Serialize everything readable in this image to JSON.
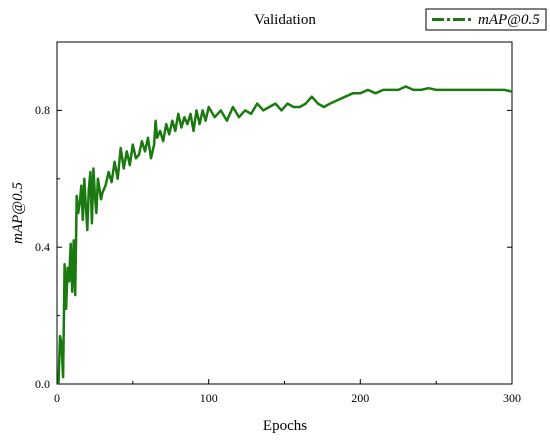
{
  "chart_data": {
    "type": "line",
    "title": "Validation",
    "xlabel": "Epochs",
    "ylabel": "mAP@0.5",
    "xlim": [
      0,
      300
    ],
    "ylim": [
      0,
      1.0
    ],
    "xticks": [
      0,
      100,
      200,
      300
    ],
    "yticks": [
      0.0,
      0.4,
      0.8
    ],
    "xtick_labels": [
      "0",
      "100",
      "200",
      "300"
    ],
    "ytick_labels": [
      "0.0",
      "0.4",
      "0.8"
    ],
    "grid": false,
    "legend_position": "top-right",
    "series": [
      {
        "name": "mAP@0.5",
        "color": "#1a7a10",
        "line_style": "dash-dot in legend, solid in plot",
        "x": [
          1,
          2,
          3,
          4,
          5,
          6,
          7,
          8,
          9,
          10,
          11,
          12,
          13,
          14,
          15,
          16,
          17,
          18,
          19,
          20,
          21,
          22,
          23,
          24,
          25,
          26,
          27,
          28,
          29,
          30,
          32,
          34,
          36,
          38,
          40,
          42,
          44,
          46,
          48,
          50,
          52,
          54,
          56,
          58,
          60,
          62,
          64,
          65,
          66,
          68,
          70,
          72,
          74,
          76,
          78,
          80,
          82,
          84,
          86,
          88,
          90,
          92,
          94,
          96,
          98,
          100,
          104,
          108,
          112,
          116,
          120,
          124,
          128,
          132,
          136,
          140,
          144,
          148,
          152,
          156,
          160,
          164,
          168,
          172,
          176,
          180,
          185,
          190,
          195,
          200,
          205,
          210,
          215,
          220,
          225,
          230,
          235,
          240,
          245,
          250,
          255,
          260,
          265,
          270,
          275,
          280,
          285,
          290,
          295,
          300
        ],
        "values": [
          0.0,
          0.14,
          0.12,
          0.02,
          0.35,
          0.22,
          0.34,
          0.3,
          0.41,
          0.27,
          0.42,
          0.26,
          0.55,
          0.5,
          0.53,
          0.58,
          0.48,
          0.6,
          0.52,
          0.45,
          0.57,
          0.62,
          0.47,
          0.63,
          0.55,
          0.5,
          0.6,
          0.57,
          0.54,
          0.56,
          0.58,
          0.62,
          0.59,
          0.65,
          0.6,
          0.69,
          0.63,
          0.68,
          0.64,
          0.7,
          0.66,
          0.67,
          0.71,
          0.68,
          0.72,
          0.66,
          0.7,
          0.77,
          0.72,
          0.74,
          0.71,
          0.76,
          0.73,
          0.77,
          0.74,
          0.79,
          0.75,
          0.78,
          0.76,
          0.79,
          0.74,
          0.8,
          0.76,
          0.8,
          0.77,
          0.81,
          0.78,
          0.8,
          0.77,
          0.81,
          0.78,
          0.8,
          0.79,
          0.82,
          0.8,
          0.81,
          0.82,
          0.8,
          0.82,
          0.81,
          0.81,
          0.82,
          0.84,
          0.82,
          0.81,
          0.82,
          0.83,
          0.84,
          0.85,
          0.85,
          0.86,
          0.85,
          0.86,
          0.86,
          0.86,
          0.87,
          0.86,
          0.86,
          0.865,
          0.86,
          0.86,
          0.86,
          0.86,
          0.86,
          0.86,
          0.86,
          0.86,
          0.86,
          0.86,
          0.855
        ]
      }
    ]
  }
}
